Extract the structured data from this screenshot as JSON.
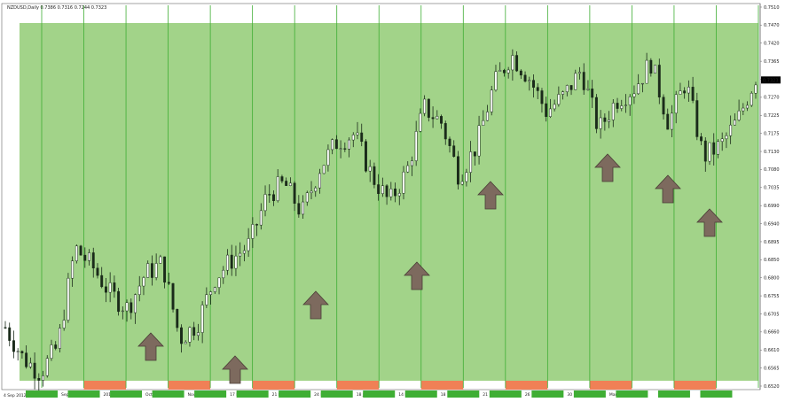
{
  "chart_data": {
    "type": "candlestick",
    "symbol_header": "NZDUSD,Daily  0.7386 0.7316 0.7244 0.7323",
    "y_axis": {
      "range": [
        0.652,
        0.752
      ],
      "tick_labels": [
        "0.7510",
        "0.7470",
        "0.7420",
        "0.7365",
        "0.7320",
        "0.7270",
        "0.7225",
        "0.7175",
        "0.7130",
        "0.7080",
        "0.7035",
        "0.6990",
        "0.6940",
        "0.6895",
        "0.6850",
        "0.6800",
        "0.6755",
        "0.6705",
        "0.6660",
        "0.6610",
        "0.6565",
        "0.6520"
      ],
      "last_price_label": "0.7323"
    },
    "x_axis": {
      "start_label": "4 Sep 2012",
      "week_labels": [
        "Sep",
        "2012",
        "Oct",
        "Nov",
        "17 Nov",
        "21 Dec",
        "24 Dec",
        "18 Jan",
        "14 Feb",
        "18",
        "21",
        "26",
        "30",
        "Mar"
      ]
    },
    "vertical_line_count": 18,
    "highlight_color": "#a2d389",
    "bar_color": "#f08056",
    "arrow_color": "#7d6a5e",
    "up_arrow_count": 9,
    "price_series": {
      "approx_path": [
        0.667,
        0.659,
        0.655,
        0.662,
        0.688,
        0.683,
        0.676,
        0.672,
        0.681,
        0.684,
        0.664,
        0.668,
        0.68,
        0.685,
        0.689,
        0.702,
        0.705,
        0.697,
        0.709,
        0.716,
        0.718,
        0.707,
        0.7,
        0.708,
        0.725,
        0.721,
        0.707,
        0.715,
        0.731,
        0.739,
        0.733,
        0.724,
        0.728,
        0.735,
        0.719,
        0.727,
        0.73,
        0.737,
        0.721,
        0.732,
        0.712,
        0.715,
        0.722,
        0.733
      ],
      "minima_marked": [
        0.667,
        0.66,
        0.672,
        0.682,
        0.699,
        0.707,
        0.703,
        0.705,
        0.701
      ]
    }
  }
}
